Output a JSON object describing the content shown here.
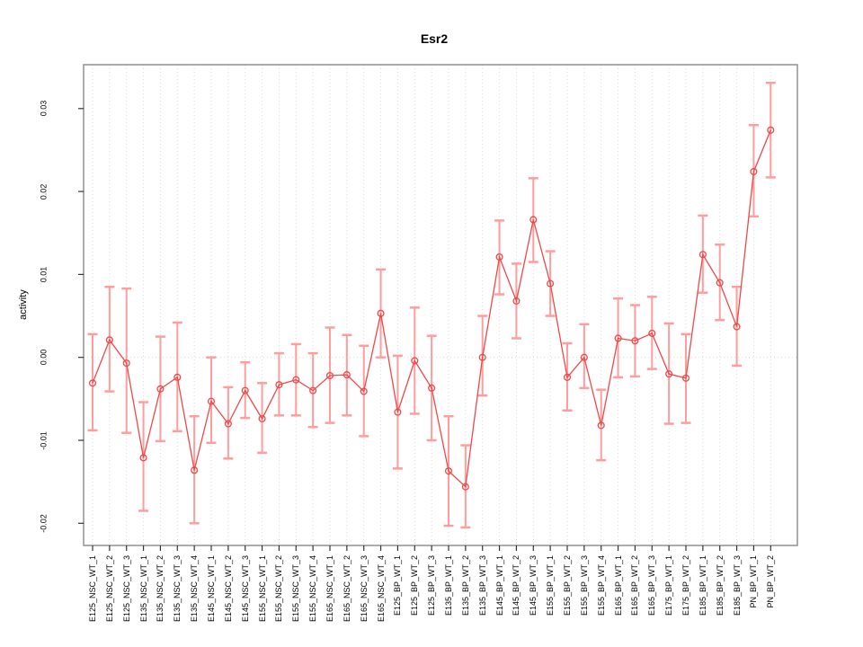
{
  "chart_data": {
    "type": "line",
    "title": "Esr2",
    "ylabel": "activity",
    "xlabel": "",
    "legend_position": "none",
    "grid": "dotted vertical gridline at every category; dotted horizontal line at y=0",
    "marker": "open-circle",
    "error_bars": true,
    "ylim": [
      -0.0226,
      0.0352
    ],
    "yticks": [
      -0.02,
      -0.01,
      0,
      0.01,
      0.02,
      0.03
    ],
    "ytick_labels": [
      "-0.02",
      "-0.01",
      "0.00",
      "0.01",
      "0.02",
      "0.03"
    ],
    "colors": {
      "series": "#f04848",
      "error_bar": "#ff9d9d",
      "grid": "#dadada",
      "zero_line": "#d6d6d6",
      "box_border": "#888888",
      "tick": "#333333"
    },
    "categories": [
      "E125_NSC_WT_1",
      "E125_NSC_WT_2",
      "E125_NSC_WT_3",
      "E135_NSC_WT_1",
      "E135_NSC_WT_2",
      "E135_NSC_WT_3",
      "E135_NSC_WT_4",
      "E145_NSC_WT_1",
      "E145_NSC_WT_2",
      "E145_NSC_WT_3",
      "E155_NSC_WT_1",
      "E155_NSC_WT_2",
      "E155_NSC_WT_3",
      "E155_NSC_WT_4",
      "E165_NSC_WT_1",
      "E165_NSC_WT_2",
      "E165_NSC_WT_3",
      "E165_NSC_WT_4",
      "E125_BP_WT_1",
      "E125_BP_WT_2",
      "E125_BP_WT_3",
      "E135_BP_WT_1",
      "E135_BP_WT_2",
      "E135_BP_WT_3",
      "E145_BP_WT_1",
      "E145_BP_WT_2",
      "E145_BP_WT_3",
      "E155_BP_WT_1",
      "E155_BP_WT_2",
      "E155_BP_WT_3",
      "E155_BP_WT_4",
      "E165_BP_WT_1",
      "E165_BP_WT_2",
      "E165_BP_WT_3",
      "E175_BP_WT_1",
      "E175_BP_WT_2",
      "E185_BP_WT_1",
      "E185_BP_WT_2",
      "E185_BP_WT_3",
      "PN_BP_WT_1",
      "PN_BP_WT_2"
    ],
    "values": [
      -0.0031,
      0.0021,
      -0.0007,
      -0.0121,
      -0.0038,
      -0.0024,
      -0.0136,
      -0.0053,
      -0.008,
      -0.004,
      -0.0074,
      -0.0033,
      -0.0027,
      -0.004,
      -0.0022,
      -0.0021,
      -0.0041,
      0.0053,
      -0.0066,
      -0.0004,
      -0.0037,
      -0.0137,
      -0.0156,
      0.0,
      0.0121,
      0.0068,
      0.0166,
      0.0089,
      -0.0024,
      0.0,
      -0.0082,
      0.0023,
      0.002,
      0.0029,
      -0.002,
      -0.0025,
      0.0124,
      0.009,
      0.0037,
      0.0224,
      0.0274
    ],
    "error_high": [
      0.0028,
      0.0085,
      0.0083,
      -0.0054,
      0.0025,
      0.0042,
      -0.0071,
      0.0,
      -0.0036,
      -0.0006,
      -0.0031,
      0.0005,
      0.0016,
      0.0005,
      0.0036,
      0.0027,
      0.0014,
      0.0106,
      0.0002,
      0.006,
      0.0026,
      -0.0071,
      -0.0106,
      0.005,
      0.0165,
      0.0113,
      0.0216,
      0.0128,
      0.0017,
      0.004,
      -0.0039,
      0.0071,
      0.0063,
      0.0073,
      0.0041,
      0.0028,
      0.0171,
      0.0136,
      0.0085,
      0.028,
      0.0331
    ],
    "error_low": [
      -0.0088,
      -0.0041,
      -0.0091,
      -0.0185,
      -0.0101,
      -0.0089,
      -0.02,
      -0.0103,
      -0.0122,
      -0.0073,
      -0.0115,
      -0.007,
      -0.007,
      -0.0084,
      -0.0079,
      -0.007,
      -0.0095,
      0.0,
      -0.0134,
      -0.0068,
      -0.01,
      -0.0203,
      -0.0205,
      -0.0046,
      0.0076,
      0.0023,
      0.0115,
      0.005,
      -0.0064,
      -0.0037,
      -0.0124,
      -0.0024,
      -0.0023,
      -0.0014,
      -0.008,
      -0.0079,
      0.0078,
      0.0045,
      -0.001,
      0.017,
      0.0217
    ]
  }
}
